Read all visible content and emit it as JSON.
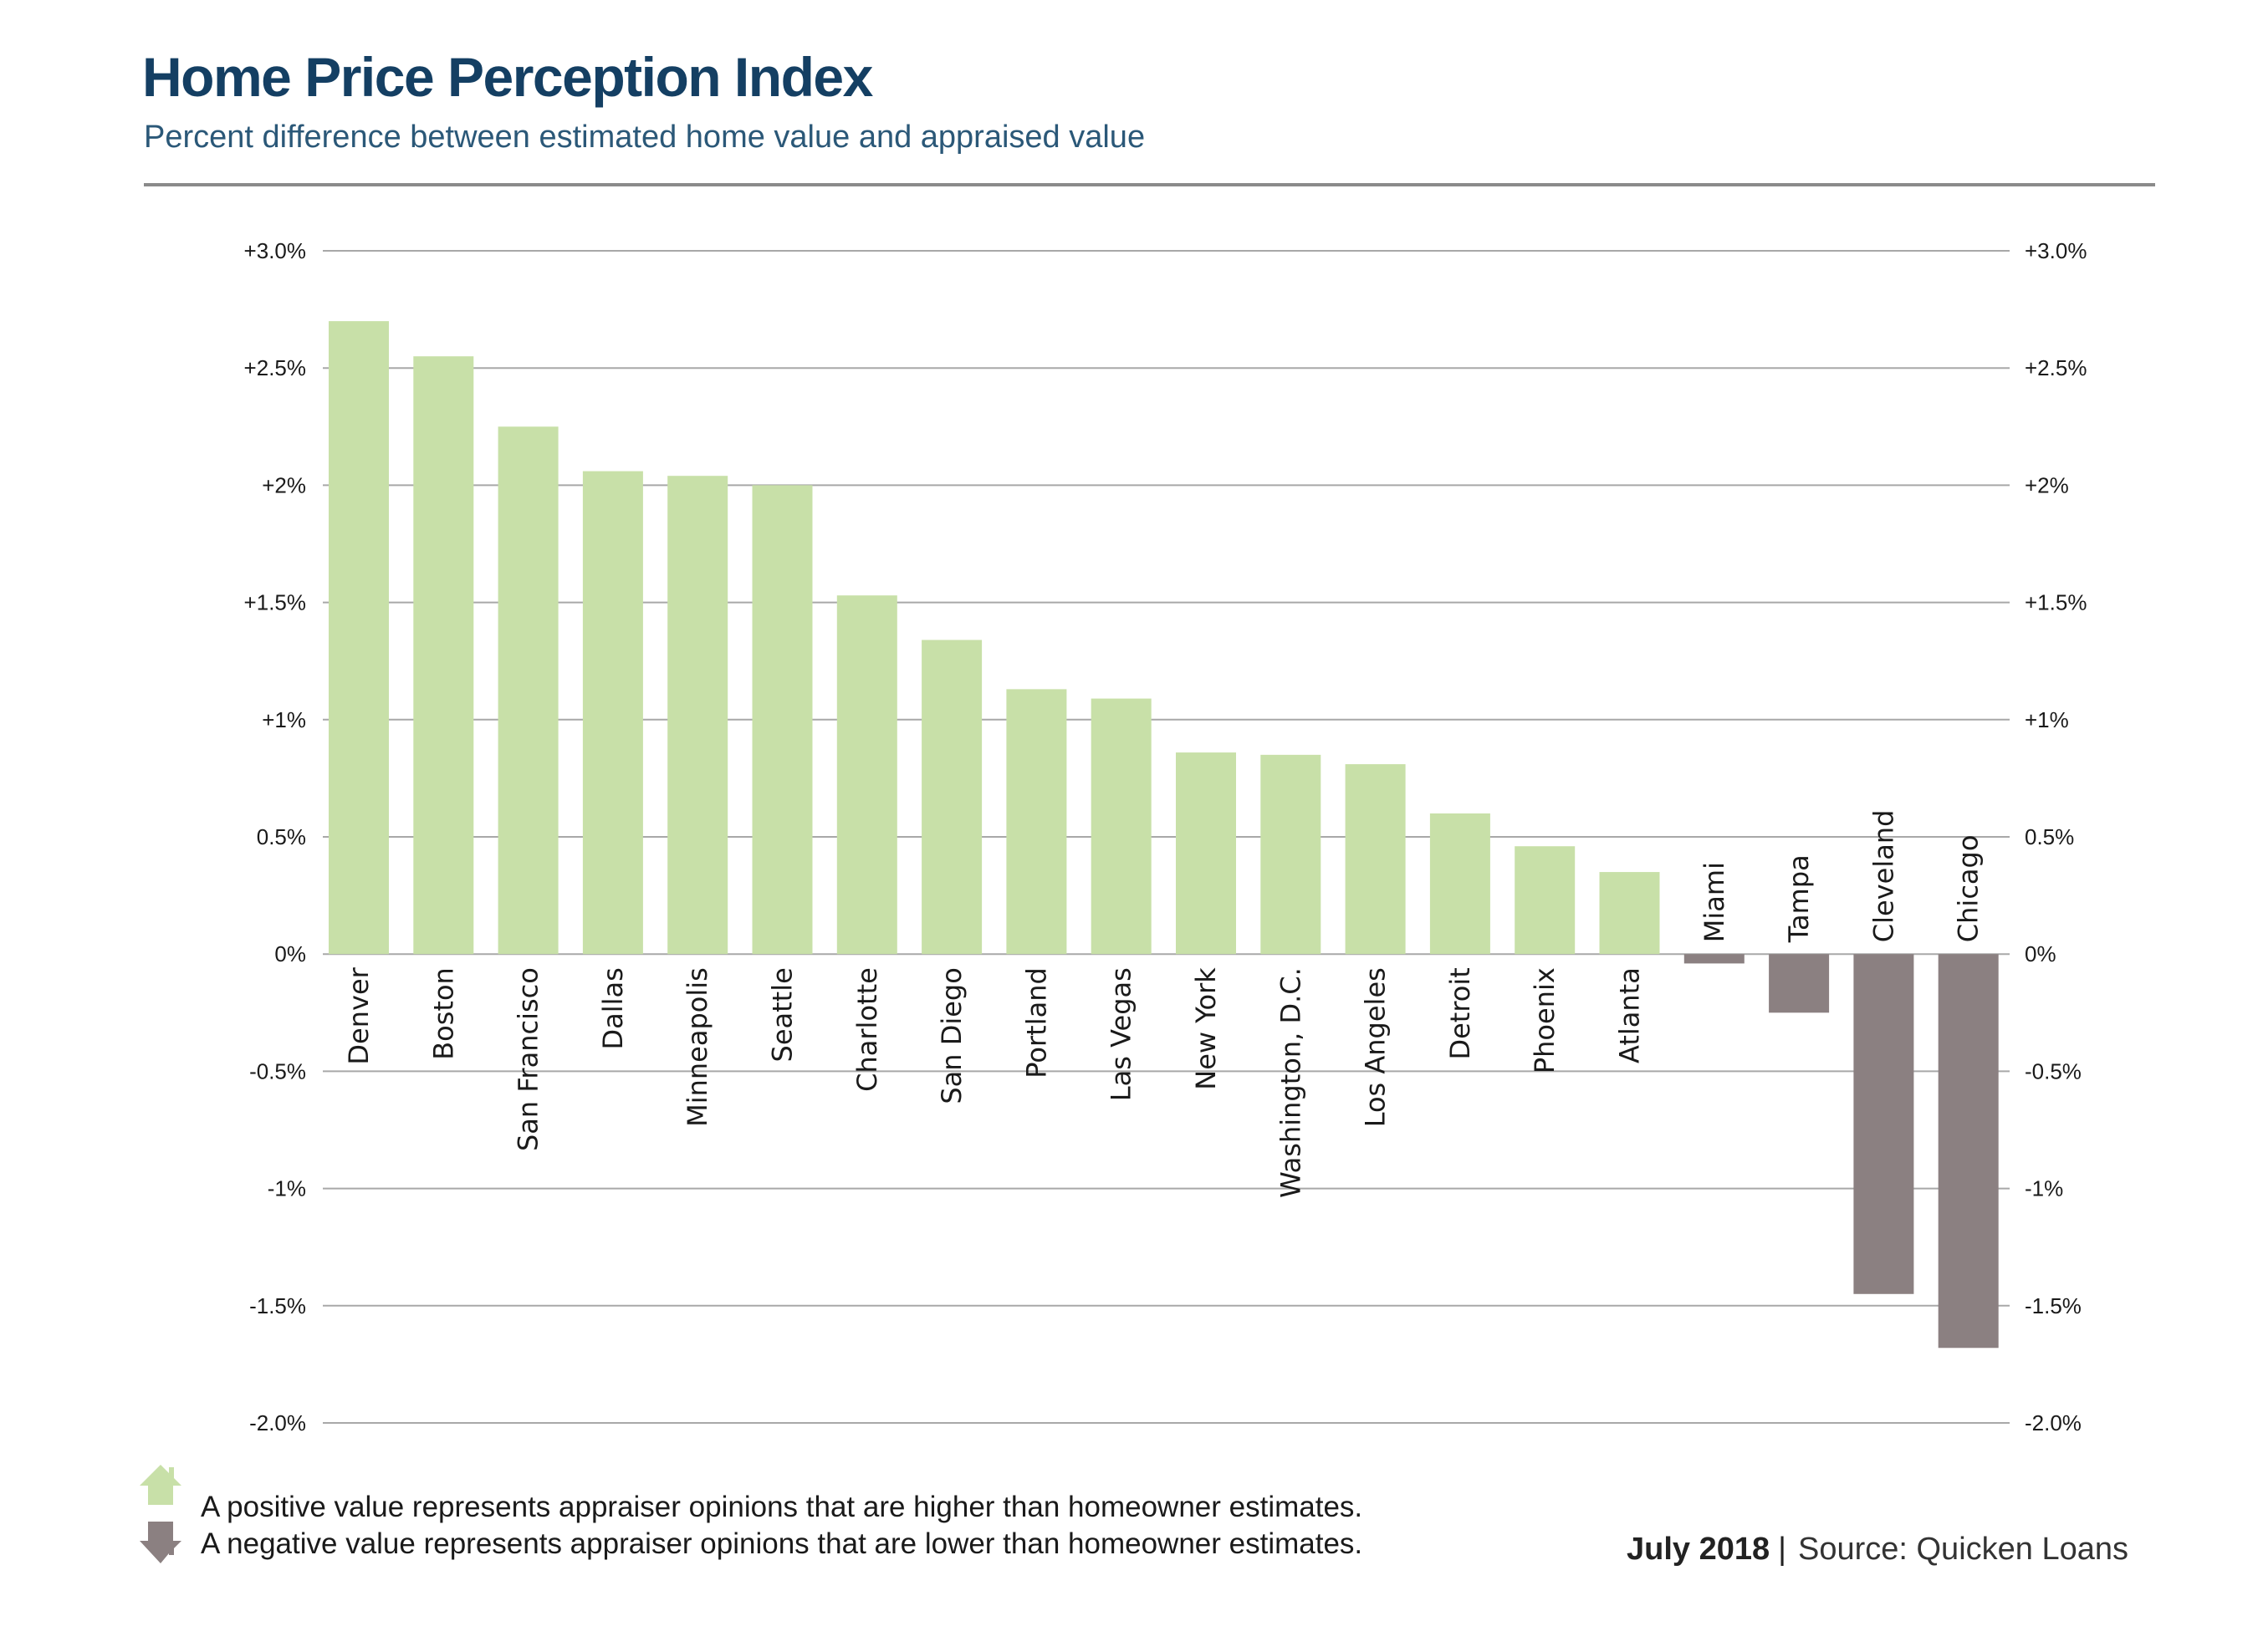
{
  "header": {
    "title": "Home Price Perception Index",
    "subtitle": "Percent difference between estimated home value and appraised value"
  },
  "legend": {
    "positive_note": "A positive value represents appraiser opinions that are higher than homeowner estimates.",
    "negative_note": "A negative value represents appraiser opinions that are lower than homeowner estimates.",
    "positive_icon": "house-up-arrow-icon",
    "negative_icon": "house-down-arrow-icon"
  },
  "footer": {
    "date": "July 2018",
    "separator": "|",
    "source": "Source: Quicken Loans"
  },
  "colors": {
    "title": "#143f63",
    "subtitle": "#2b5878",
    "positive_bar": "#c8e0a8",
    "negative_bar": "#8b8081",
    "gridline": "#a8a8a8"
  },
  "chart_data": {
    "type": "bar",
    "title": "Home Price Perception Index",
    "subtitle": "Percent difference between estimated home value and appraised value",
    "xlabel": "",
    "ylabel": "",
    "ylim": [
      -2.0,
      3.0
    ],
    "grid": true,
    "y_axis_both_sides": true,
    "y_ticks": [
      {
        "value": 3.0,
        "label": "+3.0%"
      },
      {
        "value": 2.5,
        "label": "+2.5%"
      },
      {
        "value": 2.0,
        "label": "+2%"
      },
      {
        "value": 1.5,
        "label": "+1.5%"
      },
      {
        "value": 1.0,
        "label": "+1%"
      },
      {
        "value": 0.5,
        "label": "0.5%"
      },
      {
        "value": 0.0,
        "label": "0%"
      },
      {
        "value": -0.5,
        "label": "-0.5%"
      },
      {
        "value": -1.0,
        "label": "-1%"
      },
      {
        "value": -1.5,
        "label": "-1.5%"
      },
      {
        "value": -2.0,
        "label": "-2.0%"
      }
    ],
    "categories": [
      "Denver",
      "Boston",
      "San Francisco",
      "Dallas",
      "Minneapolis",
      "Seattle",
      "Charlotte",
      "San Diego",
      "Portland",
      "Las Vegas",
      "New York",
      "Washington, D.C.",
      "Los Angeles",
      "Detroit",
      "Phoenix",
      "Atlanta",
      "Miami",
      "Tampa",
      "Cleveland",
      "Chicago"
    ],
    "values": [
      2.7,
      2.55,
      2.25,
      2.06,
      2.04,
      2.0,
      1.53,
      1.34,
      1.13,
      1.09,
      0.86,
      0.85,
      0.81,
      0.6,
      0.46,
      0.35,
      -0.04,
      -0.25,
      -1.45,
      -1.68
    ],
    "units": "percent"
  }
}
